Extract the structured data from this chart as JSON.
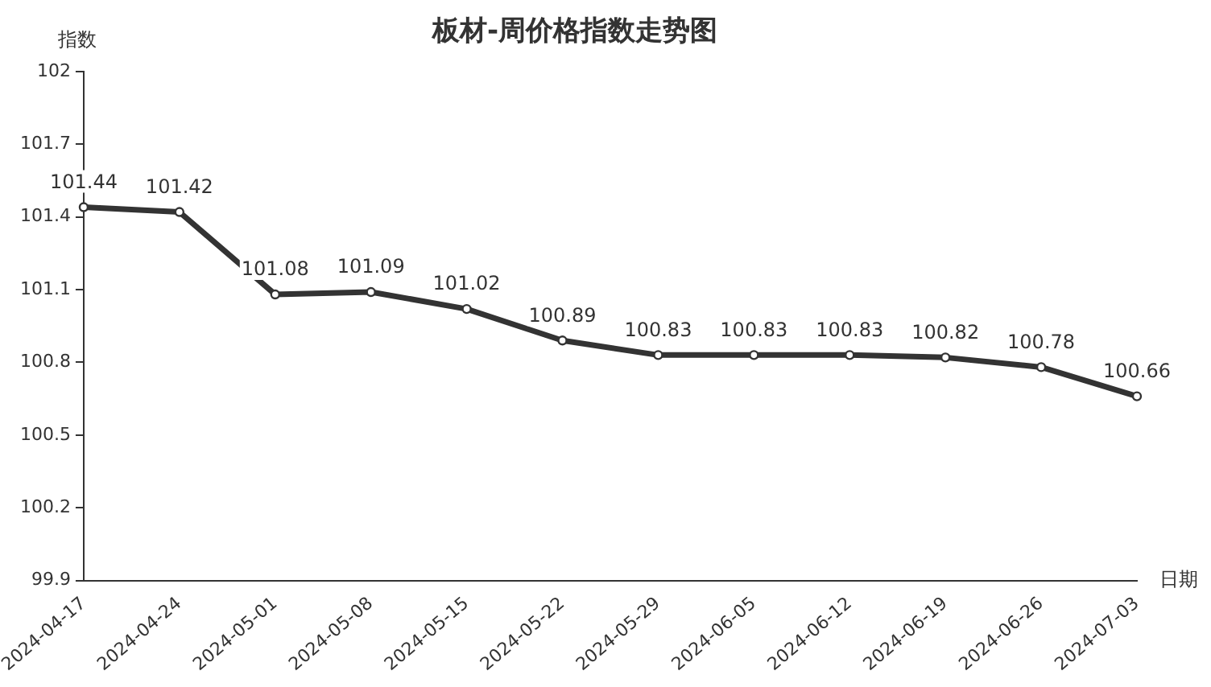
{
  "chart_data": {
    "type": "line",
    "title": "板材-周价格指数走势图",
    "xlabel": "日期",
    "ylabel": "指数",
    "categories": [
      "2024-04-17",
      "2024-04-24",
      "2024-05-01",
      "2024-05-08",
      "2024-05-15",
      "2024-05-22",
      "2024-05-29",
      "2024-06-05",
      "2024-06-12",
      "2024-06-19",
      "2024-06-26",
      "2024-07-03"
    ],
    "series": [
      {
        "color": "#333333",
        "values": [
          101.44,
          101.42,
          101.08,
          101.09,
          101.02,
          100.89,
          100.83,
          100.83,
          100.83,
          100.82,
          100.78,
          100.66
        ]
      }
    ],
    "ylim": [
      99.9,
      102
    ],
    "yticks": [
      99.9,
      100.2,
      100.5,
      100.8,
      101.1,
      101.4,
      101.7,
      102
    ],
    "grid": false,
    "legend": false,
    "marker": "circle",
    "line_style": "solid",
    "data_labels": true
  }
}
